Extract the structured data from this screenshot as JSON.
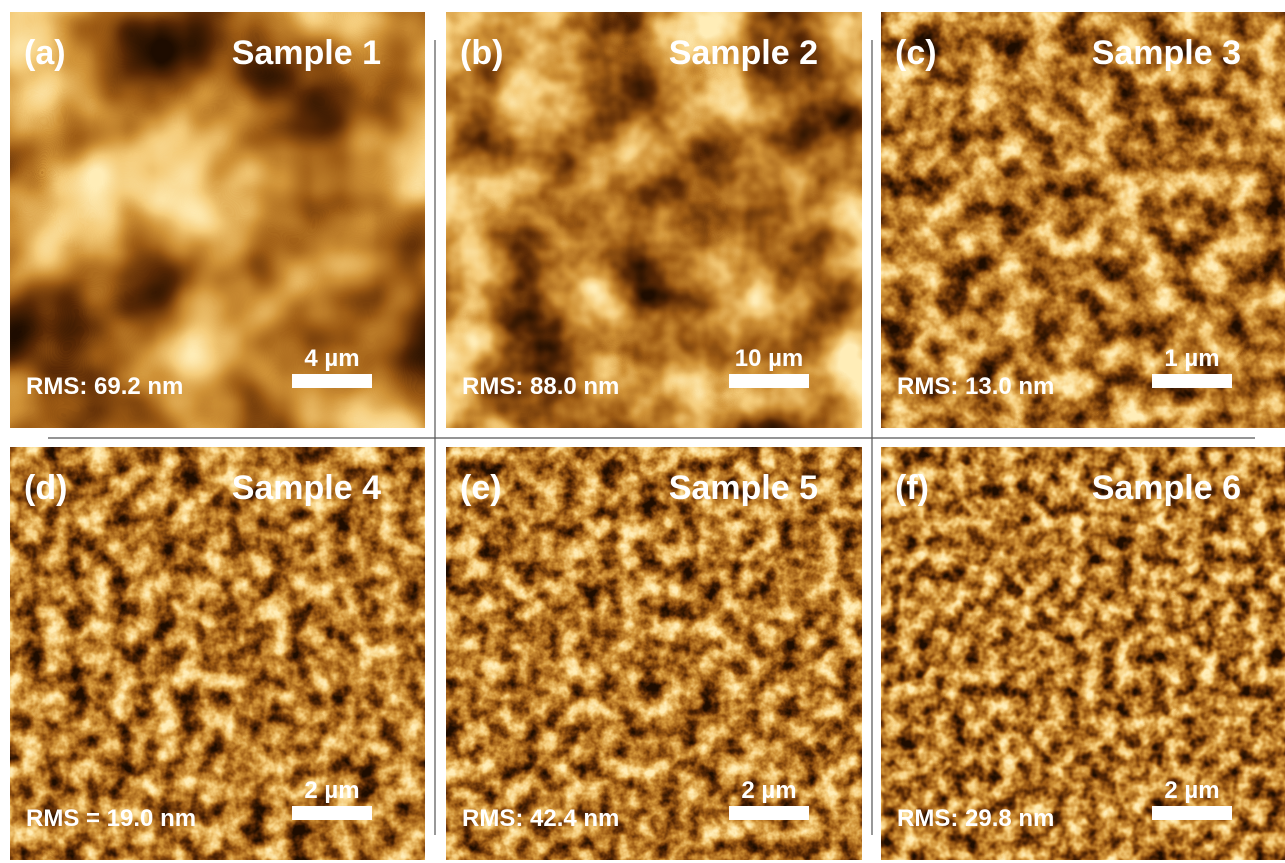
{
  "panels": [
    {
      "label": "(a)",
      "title": "Sample 1",
      "rms": "RMS: 69.2 nm",
      "scale": "4 µm"
    },
    {
      "label": "(b)",
      "title": "Sample 2",
      "rms": "RMS: 88.0 nm",
      "scale": "10 µm"
    },
    {
      "label": "(c)",
      "title": "Sample 3",
      "rms": "RMS: 13.0 nm",
      "scale": "1 µm"
    },
    {
      "label": "(d)",
      "title": "Sample 4",
      "rms": "RMS = 19.0 nm",
      "scale": "2 µm"
    },
    {
      "label": "(e)",
      "title": "Sample 5",
      "rms": "RMS: 42.4 nm",
      "scale": "2 µm"
    },
    {
      "label": "(f)",
      "title": "Sample 6",
      "rms": "RMS: 29.8 nm",
      "scale": "2 µm"
    }
  ]
}
